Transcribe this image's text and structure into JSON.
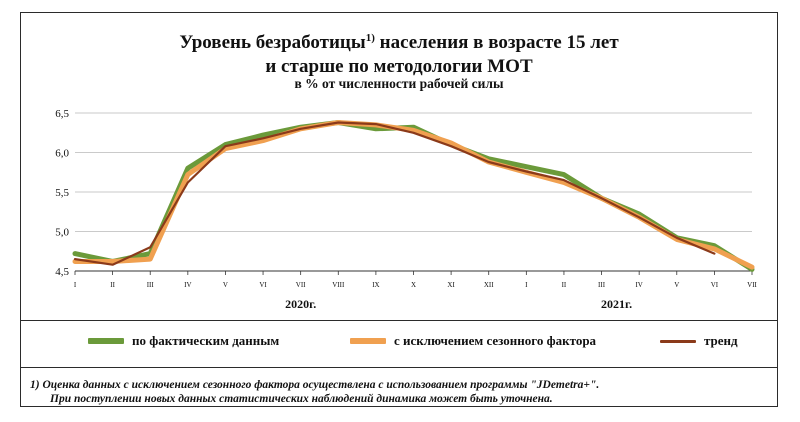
{
  "title_line1": "Уровень безработицы",
  "title_sup": "1)",
  "title_line1_rest": " населения в возрасте 15 лет",
  "title_line2": "и старше по методологии МОТ",
  "subtitle": "в % от численности рабочей силы",
  "footnote_line1": "1) Оценка данных с исключением сезонного фактора осуществлена с использованием программы \"JDemetra+\".",
  "footnote_line2": "При поступлении новых данных статистических наблюдений динамика может быть уточнена.",
  "chart_data": {
    "type": "line",
    "categories": [
      "I",
      "II",
      "III",
      "IV",
      "V",
      "VI",
      "VII",
      "VIII",
      "IX",
      "X",
      "XI",
      "XII",
      "I",
      "II",
      "III",
      "IV",
      "V",
      "VI",
      "VII"
    ],
    "year_labels": [
      {
        "label": "2020г.",
        "at_index": 6
      },
      {
        "label": "2021г.",
        "at_index": 14.4
      }
    ],
    "yticks": [
      "4,5",
      "5,0",
      "5,5",
      "6,0",
      "6,5"
    ],
    "ylim": [
      4.5,
      6.5
    ],
    "series": [
      {
        "name": "по фактическим данным",
        "color": "#6b9a3a",
        "values": [
          4.72,
          4.62,
          4.72,
          5.8,
          6.1,
          6.22,
          6.32,
          6.38,
          6.3,
          6.32,
          6.1,
          5.92,
          5.82,
          5.72,
          5.42,
          5.22,
          4.92,
          4.82,
          4.52
        ]
      },
      {
        "name": "с исключением сезонного фактора",
        "color": "#f0a050",
        "values": [
          4.62,
          4.62,
          4.65,
          5.72,
          6.05,
          6.15,
          6.3,
          6.38,
          6.35,
          6.28,
          6.12,
          5.88,
          5.75,
          5.62,
          5.42,
          5.18,
          4.9,
          4.78,
          4.55
        ]
      },
      {
        "name": "тренд",
        "color": "#8b3a1a",
        "values": [
          4.65,
          4.58,
          4.8,
          5.62,
          6.08,
          6.18,
          6.3,
          6.38,
          6.36,
          6.25,
          6.08,
          5.88,
          5.76,
          5.65,
          5.42,
          5.18,
          4.92,
          4.72,
          null
        ]
      }
    ]
  }
}
